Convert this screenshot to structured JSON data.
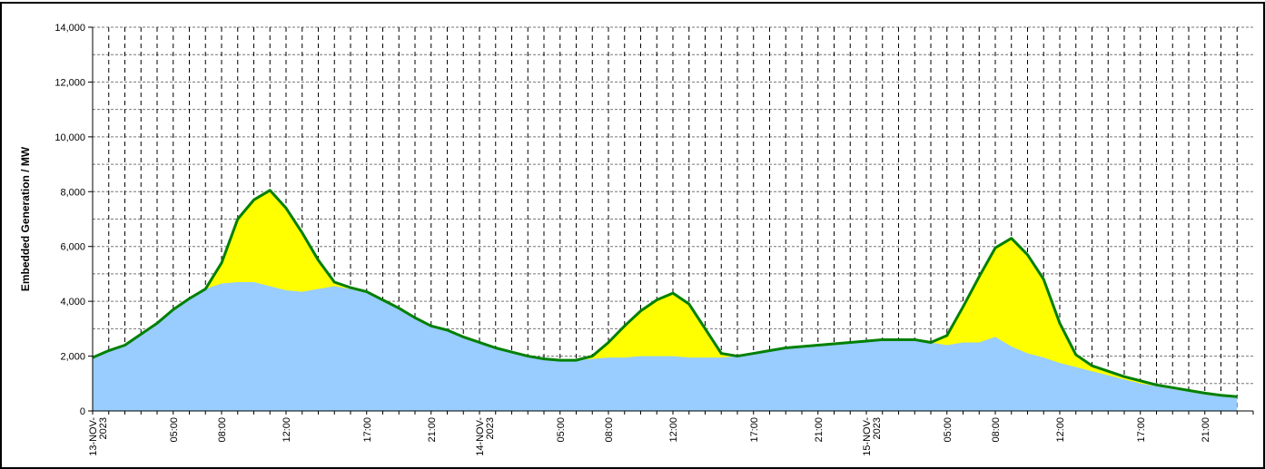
{
  "chart_data": {
    "type": "area",
    "title": "",
    "ylabel": "Embedded Generation / MW",
    "xlabel": "",
    "ylim": [
      0,
      14000
    ],
    "yticks": [
      0,
      2000,
      4000,
      6000,
      8000,
      10000,
      12000,
      14000
    ],
    "ytick_labels": [
      "0",
      "2,000",
      "4,000",
      "6,000",
      "8,000",
      "10,000",
      "12,000",
      "14,000"
    ],
    "grid": true,
    "legend": "none",
    "x_hours": [
      0,
      1,
      2,
      3,
      4,
      5,
      6,
      7,
      8,
      9,
      10,
      11,
      12,
      13,
      14,
      15,
      16,
      17,
      18,
      19,
      20,
      21,
      22,
      23,
      24,
      25,
      26,
      27,
      28,
      29,
      30,
      31,
      32,
      33,
      34,
      35,
      36,
      37,
      38,
      39,
      40,
      41,
      42,
      43,
      44,
      45,
      46,
      47,
      48,
      49,
      50,
      51,
      52,
      53,
      54,
      55,
      56,
      57,
      58,
      59,
      60,
      61,
      62,
      63,
      64,
      65,
      66,
      67,
      68,
      69,
      70,
      71
    ],
    "x_tick_labels": [
      {
        "hour": 0,
        "lines": [
          "13-NOV-",
          "2023"
        ]
      },
      {
        "hour": 5,
        "lines": [
          "05:00"
        ]
      },
      {
        "hour": 8,
        "lines": [
          "08:00"
        ]
      },
      {
        "hour": 12,
        "lines": [
          "12:00"
        ]
      },
      {
        "hour": 17,
        "lines": [
          "17:00"
        ]
      },
      {
        "hour": 21,
        "lines": [
          "21:00"
        ]
      },
      {
        "hour": 24,
        "lines": [
          "14-NOV-",
          "2023"
        ]
      },
      {
        "hour": 29,
        "lines": [
          "05:00"
        ]
      },
      {
        "hour": 32,
        "lines": [
          "08:00"
        ]
      },
      {
        "hour": 36,
        "lines": [
          "12:00"
        ]
      },
      {
        "hour": 41,
        "lines": [
          "17:00"
        ]
      },
      {
        "hour": 45,
        "lines": [
          "21:00"
        ]
      },
      {
        "hour": 48,
        "lines": [
          "15-NOV-",
          "2023"
        ]
      },
      {
        "hour": 53,
        "lines": [
          "05:00"
        ]
      },
      {
        "hour": 56,
        "lines": [
          "08:00"
        ]
      },
      {
        "hour": 60,
        "lines": [
          "12:00"
        ]
      },
      {
        "hour": 65,
        "lines": [
          "17:00"
        ]
      },
      {
        "hour": 69,
        "lines": [
          "21:00"
        ]
      }
    ],
    "colors": {
      "wind": "#99ccff",
      "solar": "#ffff00",
      "total_line": "#008000"
    },
    "series": [
      {
        "values": [
          1950,
          2200,
          2400,
          2800,
          3200,
          3700,
          4100,
          4450,
          4650,
          4700,
          4700,
          4550,
          4400,
          4350,
          4450,
          4550,
          4450,
          4300,
          4050,
          3750,
          3400,
          3100,
          2950,
          2700,
          2500,
          2300,
          2150,
          2000,
          1900,
          1850,
          1850,
          1900,
          1950,
          1950,
          2000,
          2000,
          2000,
          1950,
          1950,
          1950,
          2000,
          2100,
          2200,
          2300,
          2350,
          2400,
          2450,
          2500,
          2550,
          2600,
          2600,
          2600,
          2500,
          2400,
          2500,
          2500,
          2700,
          2350,
          2100,
          1950,
          1750,
          1600,
          1450,
          1300,
          1150,
          1000,
          900,
          800,
          700,
          600,
          520,
          480
        ]
      },
      {
        "values": [
          1950,
          2200,
          2400,
          2800,
          3200,
          3700,
          4100,
          4450,
          5400,
          7000,
          7700,
          8050,
          7400,
          6500,
          5500,
          4700,
          4500,
          4350,
          4050,
          3750,
          3400,
          3100,
          2950,
          2700,
          2500,
          2300,
          2150,
          2000,
          1900,
          1850,
          1850,
          2000,
          2500,
          3100,
          3650,
          4050,
          4300,
          3900,
          3000,
          2100,
          2000,
          2100,
          2200,
          2300,
          2350,
          2400,
          2450,
          2500,
          2550,
          2600,
          2600,
          2600,
          2500,
          2750,
          3800,
          4900,
          5950,
          6300,
          5700,
          4800,
          3200,
          2050,
          1650,
          1450,
          1250,
          1100,
          950,
          850,
          750,
          650,
          570,
          520
        ]
      }
    ]
  }
}
